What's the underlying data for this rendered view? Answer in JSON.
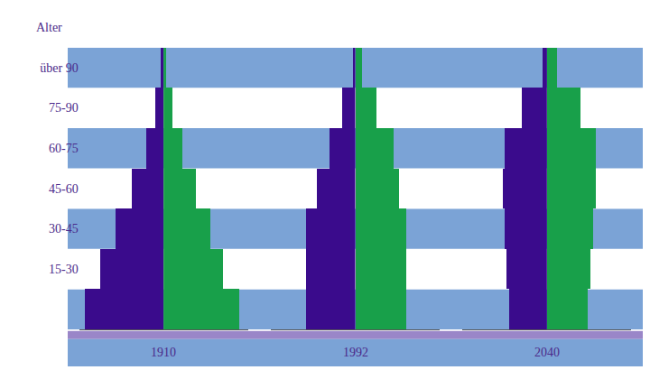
{
  "chart_data": {
    "type": "bar",
    "orientation": "horizontal",
    "ylabel": "Alter",
    "categories": [
      null,
      "15-30",
      "30-45",
      "45-60",
      "60-75",
      "75-90",
      "über 90"
    ],
    "xlim": [
      0,
      100
    ],
    "tick_labels": "y",
    "grid": false,
    "panels": [
      {
        "title": "1910",
        "series": [
          {
            "color": "#3a0b8c",
            "values": [
              93,
              75,
              57,
              38,
              20,
              10,
              3
            ]
          },
          {
            "color": "#18a04a",
            "values": [
              90,
              70,
              55,
              38,
              22,
              10,
              3
            ]
          }
        ]
      },
      {
        "title": "1992",
        "series": [
          {
            "color": "#3a0b8c",
            "values": [
              58,
              58,
              58,
              45,
              30,
              15,
              3
            ]
          },
          {
            "color": "#18a04a",
            "values": [
              60,
              60,
              60,
              52,
              45,
              25,
              8
            ]
          }
        ]
      },
      {
        "title": "2040",
        "series": [
          {
            "color": "#3a0b8c",
            "values": [
              45,
              48,
              50,
              52,
              50,
              30,
              5
            ]
          },
          {
            "color": "#18a04a",
            "values": [
              48,
              52,
              55,
              58,
              58,
              40,
              12
            ]
          }
        ]
      }
    ]
  }
}
